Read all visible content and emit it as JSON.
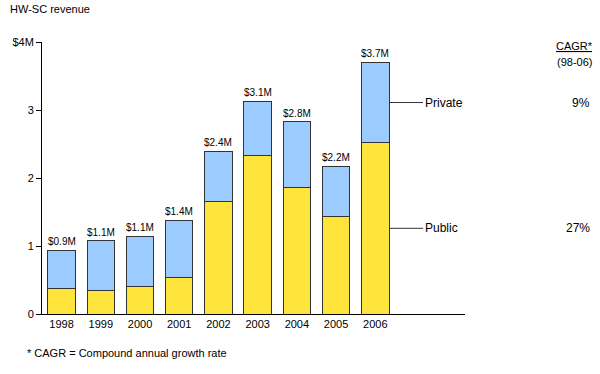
{
  "chart_data": {
    "type": "bar",
    "stacked": true,
    "grid": false,
    "ylabel": "HW-SC revenue",
    "categories": [
      "1998",
      "1999",
      "2000",
      "2001",
      "2002",
      "2003",
      "2004",
      "2005",
      "2006"
    ],
    "series": [
      {
        "name": "Public",
        "color": "#ffe43c",
        "values": [
          0.37,
          0.35,
          0.4,
          0.53,
          1.65,
          2.33,
          1.86,
          1.43,
          2.52
        ],
        "cagr": 27,
        "cagr_label": "27%"
      },
      {
        "name": "Private",
        "color": "#9ccbff",
        "values": [
          0.57,
          0.73,
          0.74,
          0.85,
          0.74,
          0.8,
          0.97,
          0.74,
          1.18
        ],
        "cagr": 9,
        "cagr_label": "9%"
      }
    ],
    "totals": {
      "values": [
        0.94,
        1.08,
        1.14,
        1.38,
        2.39,
        3.13,
        2.83,
        2.17,
        3.7
      ],
      "value_labels": [
        "$0.9M",
        "$1.1M",
        "$1.1M",
        "$1.4M",
        "$2.4M",
        "$3.1M",
        "$2.8M",
        "$2.2M",
        "$3.7M"
      ]
    },
    "cagr_header": "CAGR*",
    "cagr_period": "(98-06)",
    "footnote": "* CAGR = Compound annual growth rate",
    "ylim": [
      0,
      4
    ],
    "yticks": [
      0,
      1,
      2,
      3,
      {
        "value": 4,
        "label": "$4M"
      }
    ]
  }
}
